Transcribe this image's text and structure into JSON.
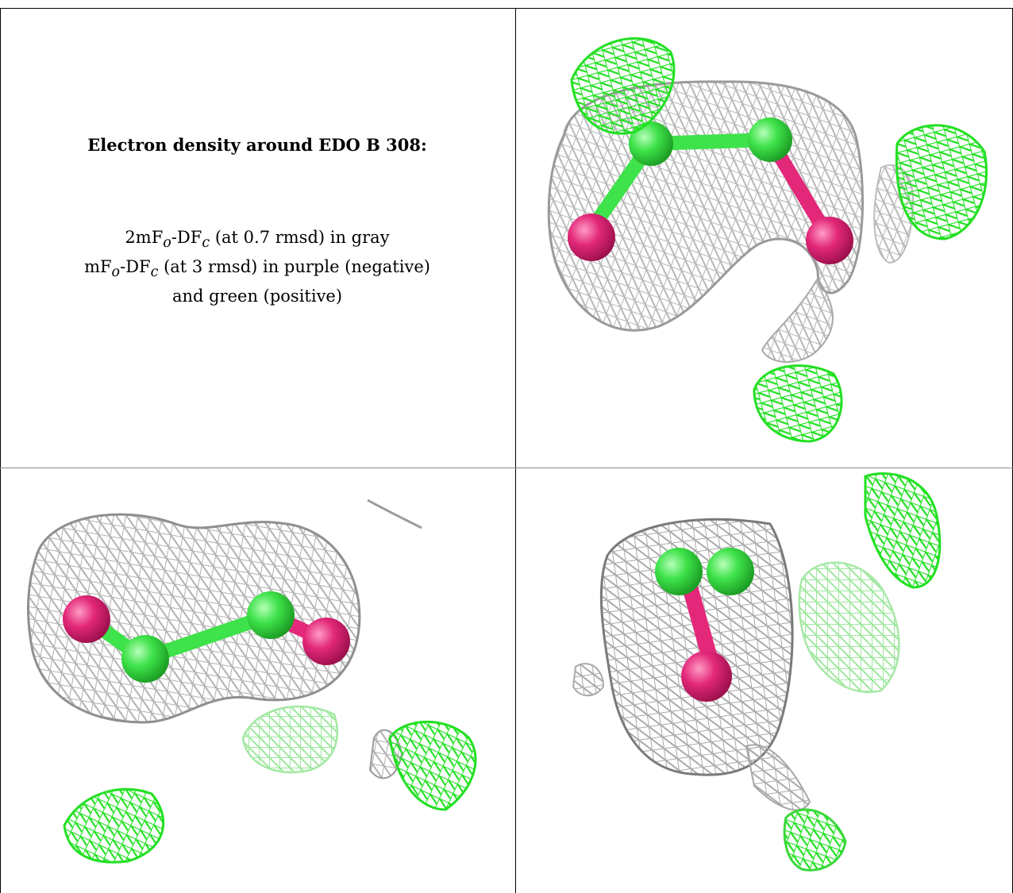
{
  "caption": {
    "title": "Electron density around EDO B 308:",
    "line1": "2mF",
    "line1_sub1": "o",
    "line1_mid": "-DF",
    "line1_sub2": "c",
    "line1_tail": " (at 0.7 rmsd) in gray",
    "line2": "mF",
    "line2_sub1": "o",
    "line2_mid": "-DF",
    "line2_sub2": "c",
    "line2_tail": " (at 3 rmsd) in purple (negative)",
    "line3": "and green (positive)"
  },
  "colors": {
    "density_gray": "#b8b8b8",
    "density_dark": "#7a7a7a",
    "positive_green": "#22e022",
    "negative_purple": "#e0206a",
    "carbon_green": "#3ee24a",
    "oxygen_pink": "#e3287a"
  }
}
